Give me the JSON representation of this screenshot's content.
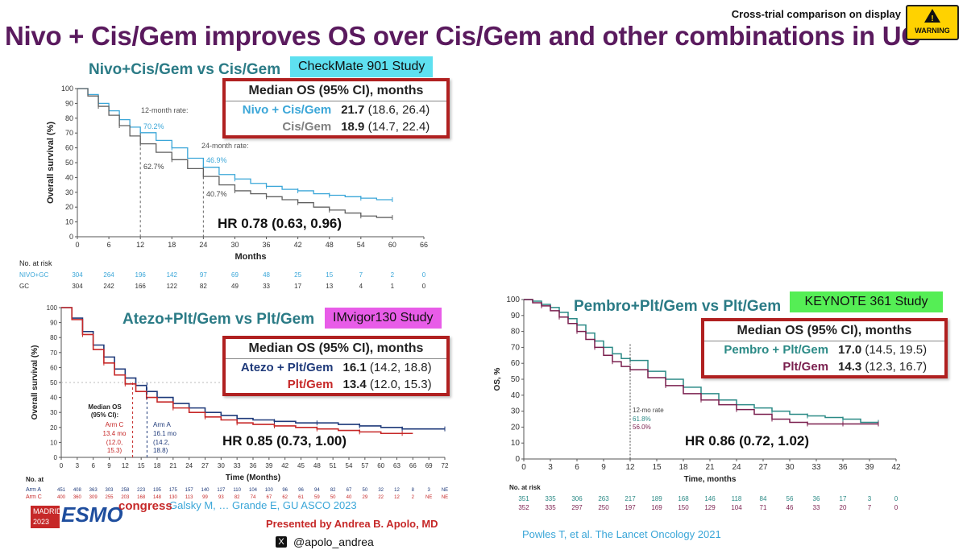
{
  "header": {
    "title": "Nivo + Cis/Gem improves OS over Cis/Gem and other combinations in UC",
    "warning_caption": "Cross-trial comparison on display",
    "warning_label": "WARNING",
    "warning_icon": "warning-triangle-icon",
    "title_color": "#5a1a5e"
  },
  "cm901": {
    "title": "Nivo+Cis/Gem vs Cis/Gem",
    "tag": "CheckMate 901 Study",
    "tag_color": "#5ee0f0",
    "box_header": "Median OS (95% CI), months",
    "rows": [
      {
        "arm": "Nivo + Cis/Gem",
        "median": "21.7",
        "ci": "(18.6, 26.4)",
        "color": "#3aa6d8"
      },
      {
        "arm": "Cis/Gem",
        "median": "18.9",
        "ci": "(14.7, 22.4)",
        "color": "#808080"
      }
    ],
    "hr": "HR 0.78 (0.63, 0.96)",
    "annotations": {
      "m12_label": "12-month rate:",
      "m12_nivo": "70.2%",
      "m12_gc": "62.7%",
      "m24_label": "24-month rate:",
      "m24_nivo": "46.9%",
      "m24_gc": "40.7%"
    },
    "risk": {
      "title": "No. at risk",
      "rows": [
        {
          "name": "NIVO+GC",
          "values": [
            "304",
            "264",
            "196",
            "142",
            "97",
            "69",
            "48",
            "25",
            "15",
            "7",
            "2",
            "0"
          ]
        },
        {
          "name": "GC",
          "values": [
            "304",
            "242",
            "166",
            "122",
            "82",
            "49",
            "33",
            "17",
            "13",
            "4",
            "1",
            "0"
          ]
        }
      ]
    }
  },
  "imvigor": {
    "title": "Atezo+Plt/Gem vs Plt/Gem",
    "tag": "IMvigor130 Study",
    "tag_color": "#e85ce8",
    "box_header": "Median OS (95% CI), months",
    "rows": [
      {
        "arm": "Atezo + Plt/Gem",
        "median": "16.1",
        "ci": "(14.2, 18.8)",
        "color": "#1f3a7a"
      },
      {
        "arm": "Plt/Gem",
        "median": "13.4",
        "ci": "(12.0, 15.3)",
        "color": "#c62828"
      }
    ],
    "hr": "HR 0.85 (0.73, 1.00)",
    "annotations": {
      "median_label_1": "Median OS",
      "median_label_2": "(95% CI):",
      "armc_name": "Arm C",
      "armc_1": "13.4 mo",
      "armc_2": "(12.0,",
      "armc_3": "15.3)",
      "arma_name": "Arm A",
      "arma_1": "16.1 mo",
      "arma_2": "(14.2,",
      "arma_3": "18.8)"
    },
    "risk": {
      "title": "No. at",
      "rows": [
        {
          "name": "Arm A",
          "values": [
            "451",
            "408",
            "363",
            "303",
            "258",
            "223",
            "195",
            "175",
            "157",
            "140",
            "127",
            "110",
            "104",
            "100",
            "96",
            "96",
            "94",
            "82",
            "67",
            "50",
            "32",
            "12",
            "8",
            "3",
            "NE"
          ]
        },
        {
          "name": "Arm C",
          "values": [
            "400",
            "360",
            "309",
            "255",
            "203",
            "168",
            "148",
            "130",
            "113",
            "99",
            "93",
            "82",
            "74",
            "67",
            "62",
            "61",
            "59",
            "50",
            "40",
            "29",
            "22",
            "12",
            "2",
            "NE",
            "NE"
          ]
        }
      ]
    },
    "cite": "Galsky M, … Grande E, GU ASCO 2023"
  },
  "kn361": {
    "title": "Pembro+Plt/Gem vs Plt/Gem",
    "tag": "KEYNOTE 361 Study",
    "tag_color": "#55ee55",
    "box_header": "Median OS (95% CI), months",
    "rows": [
      {
        "arm": "Pembro + Plt/Gem",
        "median": "17.0",
        "ci": "(14.5, 19.5)",
        "color": "#2b8a86"
      },
      {
        "arm": "Plt/Gem",
        "median": "14.3",
        "ci": "(12.3, 16.7)",
        "color": "#7a1f4e"
      }
    ],
    "hr": "HR 0.86 (0.72, 1.02)",
    "annotations": {
      "m12_label": "12-mo rate",
      "m12_pembro": "61.8%",
      "m12_plt": "56.0%"
    },
    "risk": {
      "title": "No. at risk",
      "rows": [
        {
          "name": "",
          "values": [
            "351",
            "335",
            "306",
            "263",
            "217",
            "189",
            "168",
            "146",
            "118",
            "84",
            "56",
            "36",
            "17",
            "3",
            "0"
          ]
        },
        {
          "name": "",
          "values": [
            "352",
            "335",
            "297",
            "250",
            "197",
            "169",
            "150",
            "129",
            "104",
            "71",
            "46",
            "33",
            "20",
            "7",
            "0"
          ]
        }
      ]
    },
    "cite": "Powles T, et al.  The Lancet Oncology 2021"
  },
  "footer": {
    "esmo_city": "MADRID",
    "esmo_year": "2023",
    "esmo_name": "ESMO",
    "esmo_congress": "congress",
    "presenter": "Presented by Andrea B. Apolo, MD",
    "handle": "@apolo_andrea",
    "x_icon": "x-logo-icon"
  },
  "chart_data": [
    {
      "type": "line",
      "name": "CheckMate 901",
      "xlabel": "Months",
      "ylabel": "Overall survival (%)",
      "xlim": [
        0,
        66
      ],
      "ylim": [
        0,
        100
      ],
      "xticks": [
        0,
        6,
        12,
        18,
        24,
        30,
        36,
        42,
        48,
        54,
        60,
        66
      ],
      "yticks": [
        0,
        10,
        20,
        30,
        40,
        50,
        60,
        70,
        80,
        90,
        100
      ],
      "series": [
        {
          "name": "NIVO+GC",
          "color": "#3aa6d8",
          "x": [
            0,
            2,
            4,
            6,
            8,
            10,
            12,
            15,
            18,
            21,
            24,
            27,
            30,
            33,
            36,
            39,
            42,
            45,
            48,
            51,
            54,
            57,
            60
          ],
          "y": [
            100,
            96,
            90,
            85,
            79,
            74,
            70.2,
            65,
            60,
            53,
            46.9,
            42,
            39,
            36,
            34,
            32,
            31,
            29,
            28,
            27,
            26,
            25,
            25
          ]
        },
        {
          "name": "GC",
          "color": "#606060",
          "x": [
            0,
            2,
            4,
            6,
            8,
            10,
            12,
            15,
            18,
            21,
            24,
            27,
            30,
            33,
            36,
            39,
            42,
            45,
            48,
            51,
            54,
            57,
            60
          ],
          "y": [
            100,
            95,
            88,
            82,
            75,
            68,
            62.7,
            57,
            52,
            46,
            40.7,
            35,
            31,
            29,
            27,
            25,
            23,
            20,
            18,
            16,
            14,
            13,
            13
          ]
        }
      ]
    },
    {
      "type": "line",
      "name": "IMvigor130",
      "xlabel": "Time (Months)",
      "ylabel": "Overall survival (%)",
      "xlim": [
        0,
        72
      ],
      "ylim": [
        0,
        100
      ],
      "xticks": [
        0,
        3,
        6,
        9,
        12,
        15,
        18,
        21,
        24,
        27,
        30,
        33,
        36,
        39,
        42,
        45,
        48,
        51,
        54,
        57,
        60,
        63,
        66,
        69,
        72
      ],
      "yticks": [
        0,
        10,
        20,
        30,
        40,
        50,
        60,
        70,
        80,
        90,
        100
      ],
      "series": [
        {
          "name": "Arm A",
          "color": "#1f3a7a",
          "x": [
            0,
            2,
            4,
            6,
            8,
            10,
            12,
            14,
            16,
            18,
            21,
            24,
            27,
            30,
            33,
            36,
            40,
            44,
            48,
            52,
            56,
            60,
            64,
            68,
            72
          ],
          "y": [
            100,
            93,
            84,
            75,
            67,
            59,
            53,
            48,
            44,
            40,
            36,
            33,
            30,
            28,
            26,
            25,
            24,
            23,
            23,
            22,
            21,
            20,
            19,
            19,
            19
          ]
        },
        {
          "name": "Arm C",
          "color": "#c62828",
          "x": [
            0,
            2,
            4,
            6,
            8,
            10,
            12,
            14,
            16,
            18,
            21,
            24,
            27,
            30,
            33,
            36,
            40,
            44,
            48,
            52,
            56,
            60,
            64,
            66
          ],
          "y": [
            100,
            92,
            82,
            72,
            63,
            55,
            49,
            44,
            40,
            37,
            33,
            30,
            27,
            25,
            23,
            22,
            21,
            20,
            19,
            18,
            17,
            16,
            16,
            16
          ]
        }
      ]
    },
    {
      "type": "line",
      "name": "KEYNOTE 361",
      "xlabel": "Time, months",
      "ylabel": "OS, %",
      "xlim": [
        0,
        42
      ],
      "ylim": [
        0,
        100
      ],
      "xticks": [
        0,
        3,
        6,
        9,
        12,
        15,
        18,
        21,
        24,
        27,
        30,
        33,
        36,
        39,
        42
      ],
      "yticks": [
        0,
        10,
        20,
        30,
        40,
        50,
        60,
        70,
        80,
        90,
        100
      ],
      "series": [
        {
          "name": "Pembro + Plt/Gem",
          "color": "#2b8a86",
          "x": [
            0,
            1,
            2,
            3,
            4,
            5,
            6,
            7,
            8,
            9,
            10,
            11,
            12,
            14,
            16,
            18,
            20,
            22,
            24,
            26,
            28,
            30,
            32,
            34,
            36,
            38,
            40
          ],
          "y": [
            100,
            99,
            97,
            95,
            92,
            88,
            84,
            79,
            74,
            70,
            66,
            63,
            61.8,
            55,
            50,
            45,
            41,
            37,
            34,
            32,
            30,
            28,
            27,
            26,
            25,
            23,
            23
          ]
        },
        {
          "name": "Plt/Gem",
          "color": "#7a1f4e",
          "x": [
            0,
            1,
            2,
            3,
            4,
            5,
            6,
            7,
            8,
            9,
            10,
            11,
            12,
            14,
            16,
            18,
            20,
            22,
            24,
            26,
            28,
            30,
            32,
            34,
            36,
            38,
            40
          ],
          "y": [
            100,
            98,
            96,
            93,
            89,
            85,
            80,
            75,
            70,
            65,
            61,
            58,
            56,
            51,
            46,
            41,
            37,
            34,
            31,
            28,
            25,
            23,
            22,
            22,
            22,
            22,
            22
          ]
        }
      ]
    }
  ]
}
